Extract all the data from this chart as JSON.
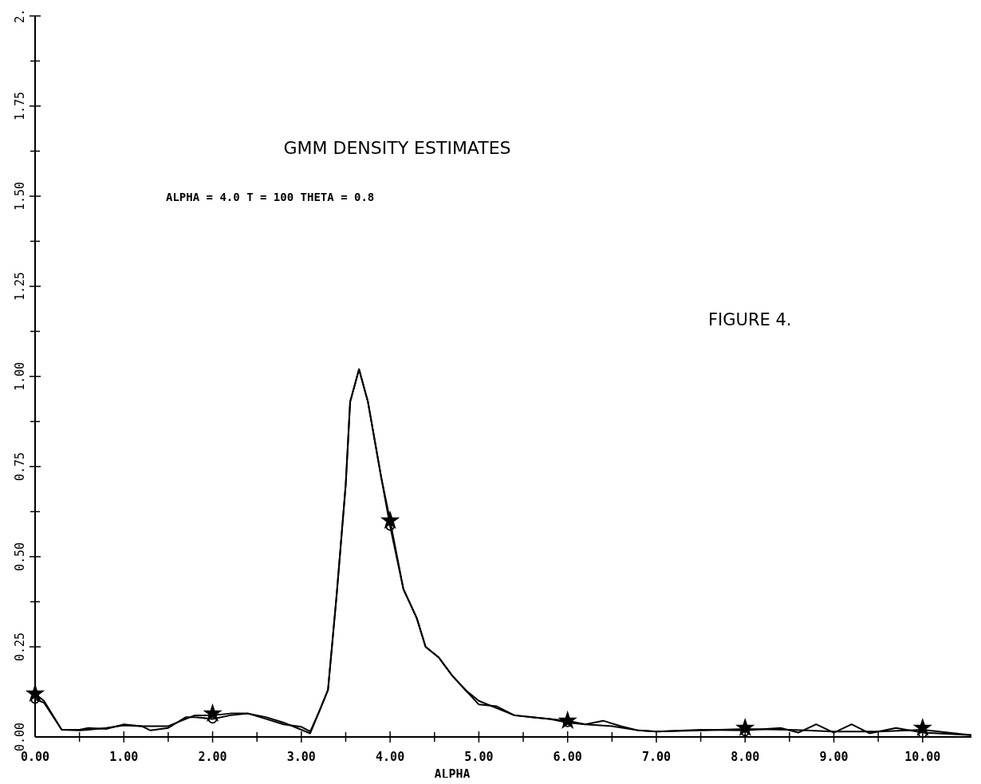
{
  "chart_data": {
    "type": "line",
    "title": "GMM DENSITY ESTIMATES",
    "xlabel": "ALPHA",
    "annotations": [
      "ALPHA = 4.0 T = 100 THETA = 0.8",
      "FIGURE 4."
    ],
    "xlim": [
      0,
      10.55
    ],
    "ylim": [
      0,
      2
    ],
    "xticks": [
      {
        "value": 0,
        "label": "0.00"
      },
      {
        "value": 0.5,
        "label": null
      },
      {
        "value": 1,
        "label": "1.00"
      },
      {
        "value": 1.5,
        "label": null
      },
      {
        "value": 2,
        "label": "2.00"
      },
      {
        "value": 2.5,
        "label": null
      },
      {
        "value": 3,
        "label": "3.00"
      },
      {
        "value": 3.5,
        "label": null
      },
      {
        "value": 4,
        "label": "4.00"
      },
      {
        "value": 4.5,
        "label": null
      },
      {
        "value": 5,
        "label": "5.00"
      },
      {
        "value": 5.5,
        "label": null
      },
      {
        "value": 6,
        "label": "6.00"
      },
      {
        "value": 6.5,
        "label": null
      },
      {
        "value": 7,
        "label": "7.00"
      },
      {
        "value": 7.5,
        "label": null
      },
      {
        "value": 8,
        "label": "8.00"
      },
      {
        "value": 8.5,
        "label": null
      },
      {
        "value": 9,
        "label": "9.00"
      },
      {
        "value": 9.5,
        "label": null
      },
      {
        "value": 10,
        "label": "10.00"
      }
    ],
    "yticks": [
      {
        "value": 0,
        "label": "0.00"
      },
      {
        "value": 0.125,
        "label": null
      },
      {
        "value": 0.25,
        "label": "0.25"
      },
      {
        "value": 0.375,
        "label": null
      },
      {
        "value": 0.5,
        "label": "0.50"
      },
      {
        "value": 0.625,
        "label": null
      },
      {
        "value": 0.75,
        "label": "0.75"
      },
      {
        "value": 0.875,
        "label": null
      },
      {
        "value": 1,
        "label": "1.00"
      },
      {
        "value": 1.125,
        "label": null
      },
      {
        "value": 1.25,
        "label": "1.25"
      },
      {
        "value": 1.375,
        "label": null
      },
      {
        "value": 1.5,
        "label": "1.50"
      },
      {
        "value": 1.625,
        "label": null
      },
      {
        "value": 1.75,
        "label": "1.75"
      },
      {
        "value": 1.875,
        "label": null
      },
      {
        "value": 2,
        "label": "2."
      }
    ],
    "series": [
      {
        "color": "#000000",
        "x": [
          0,
          0.1,
          0.3,
          0.5,
          0.6,
          0.8,
          1.0,
          1.2,
          1.5,
          1.7,
          1.8,
          2.0,
          2.2,
          2.4,
          2.6,
          2.8,
          3.0,
          3.1,
          3.2,
          3.3,
          3.4,
          3.5,
          3.55,
          3.65,
          3.75,
          3.9,
          4.0,
          4.15,
          4.3,
          4.4,
          4.55,
          4.7,
          4.85,
          5.0,
          5.2,
          5.4,
          5.6,
          5.8,
          6.0,
          6.2,
          6.5,
          6.8,
          7.0,
          7.5,
          8.0,
          8.5,
          9.0,
          9.5,
          10.0,
          10.55
        ],
        "values": [
          0.12,
          0.1,
          0.02,
          0.02,
          0.025,
          0.022,
          0.035,
          0.03,
          0.03,
          0.05,
          0.06,
          0.06,
          0.065,
          0.065,
          0.05,
          0.035,
          0.028,
          0.015,
          0.07,
          0.13,
          0.4,
          0.7,
          0.93,
          1.02,
          0.93,
          0.72,
          0.6,
          0.41,
          0.33,
          0.25,
          0.22,
          0.17,
          0.13,
          0.1,
          0.08,
          0.06,
          0.055,
          0.05,
          0.045,
          0.035,
          0.03,
          0.018,
          0.015,
          0.018,
          0.022,
          0.02,
          0.015,
          0.015,
          0.02,
          0.005
        ]
      },
      {
        "color": "#000000",
        "x": [
          0,
          0.1,
          0.3,
          0.5,
          0.6,
          0.8,
          1.0,
          1.2,
          1.3,
          1.5,
          1.7,
          1.8,
          2.0,
          2.2,
          2.4,
          2.6,
          2.8,
          3.0,
          3.1,
          3.2,
          3.3,
          3.4,
          3.5,
          3.55,
          3.65,
          3.75,
          3.9,
          4.0,
          4.15,
          4.3,
          4.4,
          4.55,
          4.7,
          4.85,
          5.0,
          5.2,
          5.4,
          5.6,
          5.8,
          6.0,
          6.2,
          6.4,
          6.6,
          6.8,
          7.0,
          7.5,
          8.0,
          8.4,
          8.6,
          8.8,
          9.0,
          9.2,
          9.4,
          9.7,
          10.0,
          10.55
        ],
        "values": [
          0.105,
          0.095,
          0.02,
          0.018,
          0.02,
          0.025,
          0.032,
          0.03,
          0.018,
          0.025,
          0.055,
          0.055,
          0.05,
          0.06,
          0.065,
          0.055,
          0.04,
          0.02,
          0.01,
          0.07,
          0.13,
          0.4,
          0.7,
          0.93,
          1.02,
          0.93,
          0.72,
          0.585,
          0.41,
          0.33,
          0.25,
          0.22,
          0.17,
          0.13,
          0.09,
          0.085,
          0.06,
          0.055,
          0.05,
          0.04,
          0.035,
          0.045,
          0.03,
          0.018,
          0.015,
          0.02,
          0.018,
          0.025,
          0.012,
          0.035,
          0.012,
          0.035,
          0.01,
          0.025,
          0.012,
          0.005
        ]
      },
      {
        "type": "scatter",
        "marker": "star",
        "color": "#000000",
        "x": [
          0,
          2,
          4,
          6,
          8,
          10
        ],
        "values": [
          0.12,
          0.065,
          0.6,
          0.045,
          0.025,
          0.025
        ]
      },
      {
        "type": "scatter",
        "marker": "circle",
        "color": "#000000",
        "x": [
          0,
          2,
          4,
          6,
          8,
          10
        ],
        "values": [
          0.105,
          0.05,
          0.585,
          0.04,
          0.015,
          0.01
        ]
      }
    ]
  }
}
